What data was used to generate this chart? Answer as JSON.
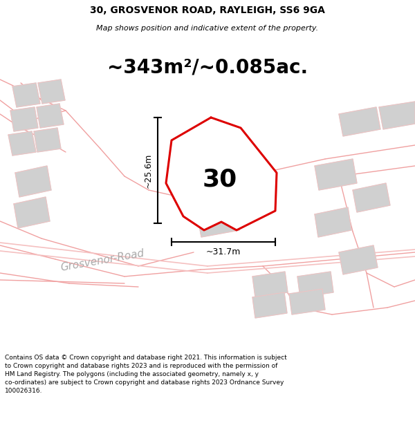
{
  "title_line1": "30, GROSVENOR ROAD, RAYLEIGH, SS6 9GA",
  "title_line2": "Map shows position and indicative extent of the property.",
  "area_text": "~343m²/~0.085ac.",
  "label_30": "30",
  "dim_width": "~31.7m",
  "dim_height": "~25.6m",
  "road_label": "Grosvenor-Road",
  "footer_text": "Contains OS data © Crown copyright and database right 2021. This information is subject to Crown copyright and database rights 2023 and is reproduced with the permission of HM Land Registry. The polygons (including the associated geometry, namely x, y co-ordinates) are subject to Crown copyright and database rights 2023 Ordnance Survey 100026316.",
  "bg_color": "#ffffff",
  "pink_color": "#f0a0a0",
  "lt_pink": "#f5c0c0",
  "gray_fill": "#d0d0d0",
  "red_color": "#dd0000",
  "blue_line_color": "#88ccee",
  "road_text_color": "#aaaaaa",
  "title_fontsize": 10,
  "subtitle_fontsize": 8,
  "area_fontsize": 20,
  "label_fontsize": 26,
  "dim_fontsize": 9,
  "road_fontsize": 11,
  "footer_fontsize": 6.5
}
